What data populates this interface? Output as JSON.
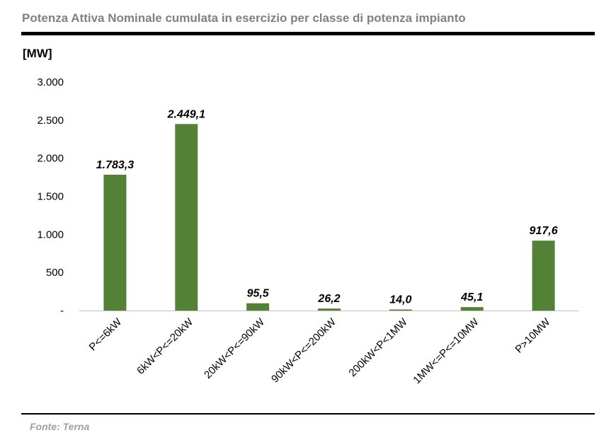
{
  "header": {
    "title": "Potenza Attiva Nominale cumulata in esercizio per classe di potenza impianto",
    "unit": "[MW]"
  },
  "footer": {
    "source": "Fonte: Terna"
  },
  "colors": {
    "bar": "#538135",
    "axis": "#bfbfbf",
    "title": "#808080"
  },
  "chart_data": {
    "type": "bar",
    "title": "Potenza Attiva Nominale cumulata in esercizio per classe di potenza impianto",
    "ylabel": "[MW]",
    "ylim": [
      0,
      3000
    ],
    "yticks": [
      0,
      500,
      1000,
      1500,
      2000,
      2500,
      3000
    ],
    "ytick_labels": [
      "-",
      "500",
      "1.000",
      "1.500",
      "2.000",
      "2.500",
      "3.000"
    ],
    "grid": false,
    "categories": [
      "P<=6kW",
      "6kW<P<=20kW",
      "20kW<P<=90kW",
      "90kW<P<=200kW",
      "200kW<P<1MW",
      "1MW<=P<=10MW",
      "P>10MW"
    ],
    "values": [
      1783.3,
      2449.1,
      95.5,
      26.2,
      14.0,
      45.1,
      917.6
    ],
    "data_labels": [
      "1.783,3",
      "2.449,1",
      "95,5",
      "26,2",
      "14,0",
      "45,1",
      "917,6"
    ]
  }
}
